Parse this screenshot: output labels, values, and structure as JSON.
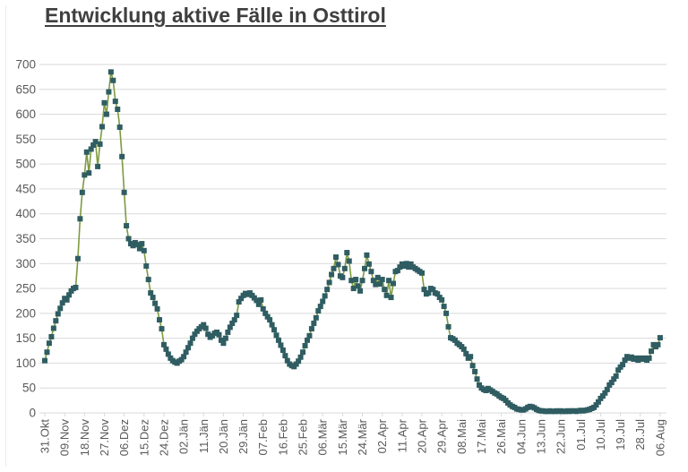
{
  "title": "Entwicklung aktive Fälle in Osttirol",
  "colors": {
    "title_text": "#3f3f3f",
    "axis_text": "#595959",
    "gridline": "#d9d9d9",
    "line": "#7e9b40",
    "marker": "#2f5d62",
    "frame": "#ececec",
    "background": "#ffffff"
  },
  "chart_data": {
    "type": "line",
    "title": "Entwicklung aktive Fälle in Osttirol",
    "xlabel": "",
    "ylabel": "",
    "ylim": [
      0,
      700
    ],
    "y_tick_step": 50,
    "y_tick_labels": [
      "0",
      "50",
      "100",
      "150",
      "200",
      "250",
      "300",
      "350",
      "400",
      "450",
      "500",
      "550",
      "600",
      "650",
      "700"
    ],
    "x_tick_labels": [
      "31.Okt",
      "09.Nov",
      "18.Nov",
      "27.Nov",
      "06.Dez",
      "15.Dez",
      "24.Dez",
      "02.Jän",
      "11.Jän",
      "20.Jän",
      "29.Jän",
      "07.Feb",
      "16.Feb",
      "25.Feb",
      "06.Mär",
      "15.Mär",
      "24.Mär",
      "02.Apr",
      "11.Apr",
      "20.Apr",
      "29.Apr",
      "08.Mai",
      "17.Mai",
      "26.Mai",
      "04.Jun",
      "13.Jun",
      "22.Jun",
      "01.Jul",
      "10.Jul",
      "19.Jul",
      "28.Jul",
      "06.Aug"
    ],
    "x_tick_interval_days": 9,
    "n_points": 280,
    "grid": true,
    "legend_position": "none",
    "marker_shape": "square",
    "values": [
      105,
      122,
      140,
      153,
      170,
      185,
      199,
      210,
      221,
      230,
      227,
      237,
      245,
      250,
      252,
      310,
      390,
      443,
      478,
      524,
      482,
      530,
      538,
      545,
      495,
      540,
      575,
      623,
      600,
      645,
      685,
      668,
      626,
      610,
      574,
      515,
      443,
      376,
      350,
      340,
      336,
      342,
      338,
      330,
      340,
      326,
      295,
      268,
      241,
      232,
      220,
      209,
      187,
      169,
      137,
      128,
      118,
      110,
      105,
      102,
      100,
      104,
      107,
      113,
      122,
      131,
      140,
      150,
      158,
      164,
      169,
      173,
      177,
      170,
      158,
      152,
      155,
      160,
      162,
      157,
      146,
      140,
      150,
      162,
      172,
      180,
      187,
      196,
      223,
      230,
      236,
      240,
      238,
      241,
      236,
      231,
      226,
      218,
      227,
      209,
      200,
      193,
      187,
      177,
      167,
      156,
      146,
      136,
      126,
      115,
      105,
      98,
      95,
      93,
      98,
      104,
      112,
      122,
      135,
      146,
      155,
      169,
      180,
      191,
      205,
      214,
      224,
      235,
      248,
      262,
      278,
      290,
      313,
      298,
      275,
      272,
      290,
      322,
      305,
      266,
      250,
      268,
      255,
      245,
      266,
      290,
      317,
      299,
      284,
      266,
      258,
      272,
      259,
      268,
      248,
      236,
      266,
      232,
      260,
      284,
      286,
      293,
      299,
      295,
      300,
      293,
      299,
      293,
      290,
      287,
      284,
      281,
      248,
      239,
      241,
      250,
      248,
      241,
      239,
      232,
      227,
      214,
      200,
      173,
      151,
      149,
      146,
      140,
      137,
      133,
      128,
      119,
      110,
      113,
      95,
      83,
      68,
      56,
      50,
      47,
      45,
      49,
      46,
      43,
      40,
      38,
      34,
      31,
      29,
      25,
      20,
      16,
      13,
      11,
      8,
      7,
      6,
      6,
      8,
      11,
      13,
      12,
      10,
      7,
      5,
      4,
      4,
      3,
      3,
      4,
      3,
      3,
      4,
      3,
      4,
      3,
      3,
      4,
      3,
      4,
      4,
      3,
      4,
      5,
      4,
      5,
      6,
      7,
      9,
      11,
      16,
      22,
      29,
      34,
      40,
      47,
      56,
      61,
      68,
      74,
      86,
      92,
      97,
      106,
      113,
      110,
      112,
      108,
      110,
      106,
      110,
      108,
      110,
      106,
      110,
      124,
      137,
      133,
      137,
      151
    ]
  }
}
